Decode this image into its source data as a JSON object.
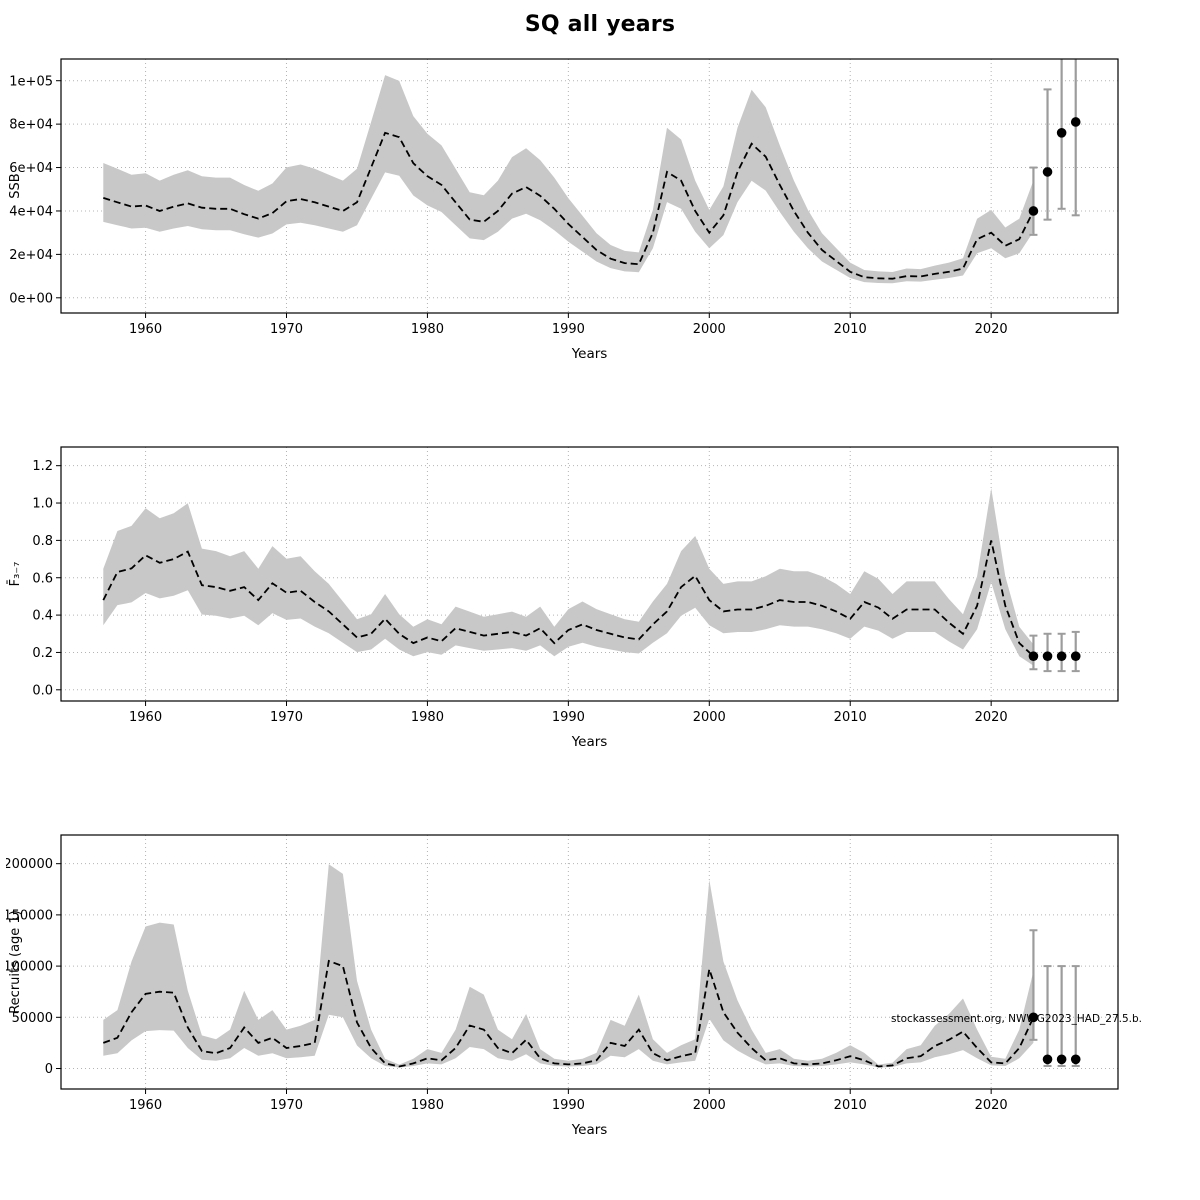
{
  "page": {
    "title": "SQ all years"
  },
  "watermark": "stockassessment.org, NWWG2023_HAD_27.5.b.",
  "colors": {
    "band": "#c8c8c8",
    "line": "#000000",
    "grid": "#b4b4b4",
    "errbar": "#9c9c9c",
    "frame": "#000000"
  },
  "chart_data": [
    {
      "type": "line",
      "name": "ssb",
      "series": "SSB estimate with confidence band and forecast",
      "xlabel": "Years",
      "ylabel": "SSB",
      "years_start": 1957,
      "values": [
        46000,
        44000,
        42000,
        42500,
        40000,
        42000,
        43500,
        41500,
        41000,
        41000,
        38500,
        36500,
        39000,
        44500,
        45500,
        44000,
        42000,
        40000,
        44000,
        60000,
        76000,
        74000,
        62000,
        56000,
        52000,
        44000,
        36000,
        35000,
        40000,
        48000,
        51000,
        47000,
        41000,
        34000,
        28000,
        22000,
        18000,
        16000,
        15500,
        30000,
        58000,
        54000,
        40000,
        30000,
        38000,
        58000,
        71000,
        65000,
        52000,
        40000,
        30000,
        22000,
        17000,
        12000,
        9500,
        9000,
        8800,
        10000,
        9800,
        11000,
        12000,
        13500,
        27000,
        30000,
        24000,
        27000,
        40000
      ],
      "ci_lo_factor": 0.76,
      "ci_hi_factor": 1.35,
      "forecast": [
        {
          "x": 2023,
          "y": 40000,
          "lo": 29000,
          "hi": 60000
        },
        {
          "x": 2024,
          "y": 58000,
          "lo": 36000,
          "hi": 96000
        },
        {
          "x": 2025,
          "y": 76000,
          "lo": 41000,
          "hi": 122000
        },
        {
          "x": 2026,
          "y": 81000,
          "lo": 38000,
          "hi": 135000
        }
      ],
      "xlim": [
        1954,
        2029
      ],
      "ylim": [
        -7000,
        110000
      ],
      "xticks": [
        1960,
        1970,
        1980,
        1990,
        2000,
        2010,
        2020
      ],
      "yticks": [
        0,
        20000,
        40000,
        60000,
        80000,
        100000
      ],
      "ytick_labels": [
        "0e+00",
        "2e+04",
        "4e+04",
        "6e+04",
        "8e+04",
        "1e+05"
      ],
      "grid": true
    },
    {
      "type": "line",
      "name": "fbar",
      "series": "Fishing mortality F3-7 with confidence band and forecast",
      "xlabel": "Years",
      "ylabel": "F̄₃₋₇",
      "years_start": 1957,
      "values": [
        0.48,
        0.63,
        0.65,
        0.72,
        0.68,
        0.7,
        0.74,
        0.56,
        0.55,
        0.53,
        0.55,
        0.48,
        0.57,
        0.52,
        0.53,
        0.47,
        0.42,
        0.35,
        0.28,
        0.3,
        0.38,
        0.3,
        0.25,
        0.28,
        0.26,
        0.33,
        0.31,
        0.29,
        0.3,
        0.31,
        0.29,
        0.33,
        0.25,
        0.32,
        0.35,
        0.32,
        0.3,
        0.28,
        0.27,
        0.35,
        0.42,
        0.55,
        0.61,
        0.48,
        0.42,
        0.43,
        0.43,
        0.45,
        0.48,
        0.47,
        0.47,
        0.45,
        0.42,
        0.38,
        0.47,
        0.44,
        0.38,
        0.43,
        0.43,
        0.43,
        0.36,
        0.3,
        0.45,
        0.8,
        0.45,
        0.25,
        0.18
      ],
      "ci_lo_factor": 0.72,
      "ci_hi_factor": 1.35,
      "forecast": [
        {
          "x": 2023,
          "y": 0.18,
          "lo": 0.11,
          "hi": 0.29
        },
        {
          "x": 2024,
          "y": 0.18,
          "lo": 0.1,
          "hi": 0.3
        },
        {
          "x": 2025,
          "y": 0.18,
          "lo": 0.1,
          "hi": 0.3
        },
        {
          "x": 2026,
          "y": 0.18,
          "lo": 0.1,
          "hi": 0.31
        }
      ],
      "xlim": [
        1954,
        2029
      ],
      "ylim": [
        -0.06,
        1.3
      ],
      "xticks": [
        1960,
        1970,
        1980,
        1990,
        2000,
        2010,
        2020
      ],
      "yticks": [
        0.0,
        0.2,
        0.4,
        0.6,
        0.8,
        1.0,
        1.2
      ],
      "ytick_labels": [
        "0.0",
        "0.2",
        "0.4",
        "0.6",
        "0.8",
        "1.0",
        "1.2"
      ],
      "grid": true
    },
    {
      "type": "line",
      "name": "recruits",
      "series": "Recruits (age 1) with confidence band and forecast",
      "xlabel": "Years",
      "ylabel": "Recruits (age 1)",
      "years_start": 1957,
      "values": [
        25000,
        30000,
        55000,
        73000,
        75000,
        74000,
        40000,
        17000,
        15000,
        20000,
        40000,
        25000,
        30000,
        20000,
        22000,
        25000,
        105000,
        100000,
        45000,
        20000,
        5000,
        2000,
        5000,
        10000,
        8000,
        20000,
        42000,
        38000,
        20000,
        15000,
        28000,
        10000,
        5000,
        4000,
        5000,
        8000,
        25000,
        22000,
        38000,
        15000,
        8000,
        12000,
        15000,
        97000,
        55000,
        35000,
        20000,
        8000,
        10000,
        5000,
        4000,
        5000,
        8000,
        12000,
        8000,
        2000,
        3000,
        10000,
        12000,
        22000,
        28000,
        36000,
        20000,
        6000,
        5000,
        20000,
        50000
      ],
      "ci_lo_factor": 0.5,
      "ci_hi_factor": 1.9,
      "forecast": [
        {
          "x": 2023,
          "y": 50000,
          "lo": 28000,
          "hi": 135000
        },
        {
          "x": 2024,
          "y": 9000,
          "lo": 2500,
          "hi": 100000
        },
        {
          "x": 2025,
          "y": 9000,
          "lo": 2500,
          "hi": 100000
        },
        {
          "x": 2026,
          "y": 9000,
          "lo": 2500,
          "hi": 100000
        }
      ],
      "xlim": [
        1954,
        2029
      ],
      "ylim": [
        -20000,
        228000
      ],
      "xticks": [
        1960,
        1970,
        1980,
        1990,
        2000,
        2010,
        2020
      ],
      "yticks": [
        0,
        50000,
        100000,
        150000,
        200000
      ],
      "ytick_labels": [
        "0",
        "50000",
        "100000",
        "150000",
        "200000"
      ],
      "grid": true
    }
  ]
}
